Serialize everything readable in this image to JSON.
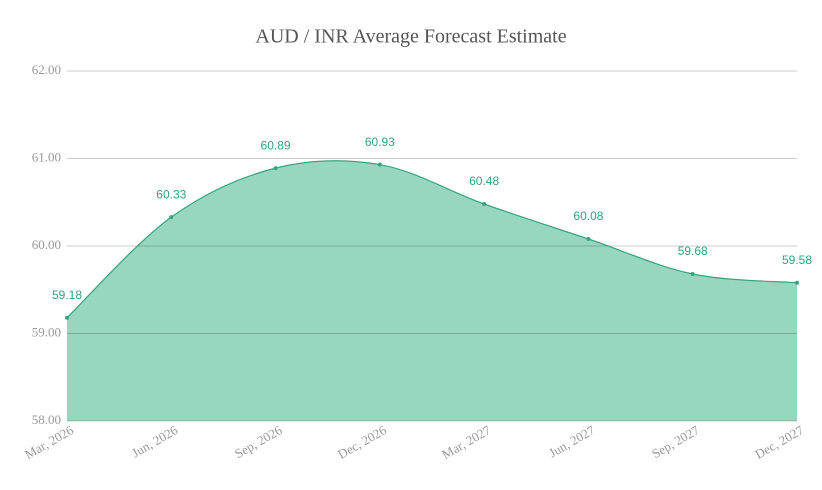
{
  "chart_data": {
    "type": "area",
    "title": "AUD / INR Average Forecast Estimate",
    "categories": [
      "Mar, 2026",
      "Jun, 2026",
      "Sep, 2026",
      "Dec, 2026",
      "Mar, 2027",
      "Jun, 2027",
      "Sep, 2027",
      "Dec, 2027"
    ],
    "values": [
      59.18,
      60.33,
      60.89,
      60.93,
      60.48,
      60.08,
      59.68,
      59.58
    ],
    "color": "#98d7bf",
    "line_color": "#3aa57c",
    "ylim": [
      58,
      62
    ],
    "yticks": [
      {
        "value": 58,
        "label": "58.00"
      },
      {
        "value": 59,
        "label": "59.00"
      },
      {
        "value": 60,
        "label": "60.00"
      },
      {
        "value": 61,
        "label": "61.00"
      },
      {
        "value": 62,
        "label": "62.00"
      }
    ],
    "grid": true
  }
}
